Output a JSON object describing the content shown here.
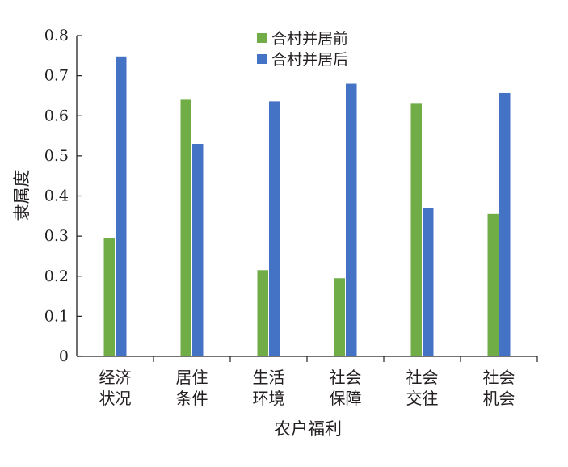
{
  "chart_data": {
    "type": "bar",
    "categories": [
      [
        "经济",
        "状况"
      ],
      [
        "居住",
        "条件"
      ],
      [
        "生活",
        "环境"
      ],
      [
        "社会",
        "保障"
      ],
      [
        "社会",
        "交往"
      ],
      [
        "社会",
        "机会"
      ]
    ],
    "series": [
      {
        "name": "合村并居前",
        "color": "#70ad47",
        "values": [
          0.295,
          0.64,
          0.215,
          0.195,
          0.63,
          0.355
        ]
      },
      {
        "name": "合村并居后",
        "color": "#4472c4",
        "values": [
          0.748,
          0.53,
          0.636,
          0.68,
          0.37,
          0.657
        ]
      }
    ],
    "xlabel": "农户福利",
    "ylabel": "隶属度",
    "ylim": [
      0,
      0.8
    ],
    "yticks": [
      "0",
      "0.1",
      "0.2",
      "0.3",
      "0.4",
      "0.5",
      "0.6",
      "0.7",
      "0.8"
    ],
    "grid": false,
    "legend_position": "top-center"
  }
}
